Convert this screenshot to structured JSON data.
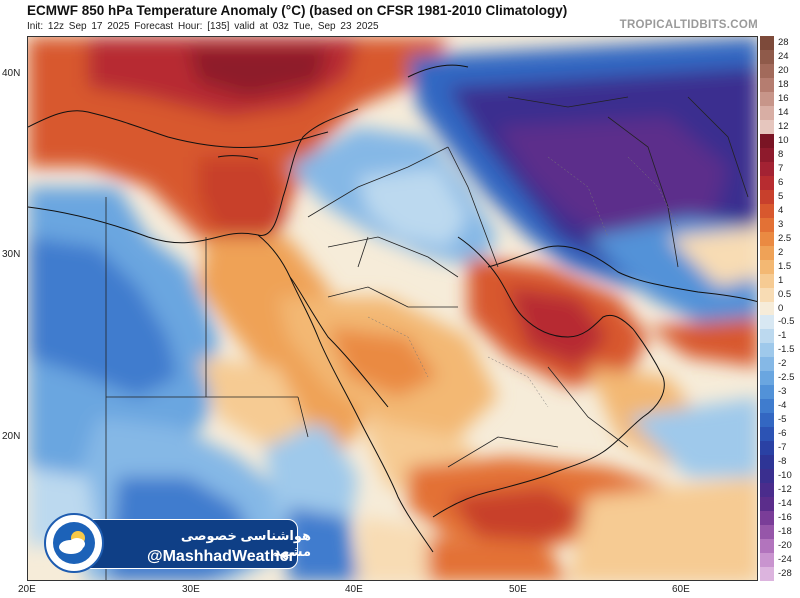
{
  "header": {
    "title": "ECMWF 850 hPa Temperature Anomaly (°C) (based on CFSR 1981-2010 Climatology)",
    "subtitle": "Init: 12z Sep 17 2025   Forecast Hour: [135]   valid at 03z Tue, Sep 23 2025",
    "site": "TROPICALTIDBITS.COM"
  },
  "axes": {
    "lat_labels": [
      "40N",
      "30N",
      "20N"
    ],
    "lon_labels": [
      "20E",
      "30E",
      "40E",
      "50E",
      "60E"
    ]
  },
  "colorbar": {
    "labels": [
      "28",
      "24",
      "20",
      "18",
      "16",
      "14",
      "12",
      "10",
      "8",
      "7",
      "6",
      "5",
      "4",
      "3",
      "2.5",
      "2",
      "1.5",
      "1",
      "0.5",
      "0",
      "-0.5",
      "-1",
      "-1.5",
      "-2",
      "-2.5",
      "-3",
      "-4",
      "-5",
      "-6",
      "-7",
      "-8",
      "-10",
      "-12",
      "-14",
      "-16",
      "-18",
      "-20",
      "-24",
      "-28"
    ],
    "colors": [
      "#7d4a3a",
      "#8f5a4a",
      "#a26a5b",
      "#b57d70",
      "#c79589",
      "#d8aea4",
      "#e6c6be",
      "#7a1424",
      "#8e1a2c",
      "#a32233",
      "#b72c30",
      "#c8402c",
      "#d8582e",
      "#e37135",
      "#ea8a42",
      "#efa257",
      "#f3b873",
      "#f6cb93",
      "#f8dcb4",
      "#f6ecd9",
      "#d8e8f3",
      "#bcd9ef",
      "#9fc9eb",
      "#85b8e6",
      "#6aa6e0",
      "#5292d8",
      "#3f7cce",
      "#3367c2",
      "#2c53b4",
      "#2a41a4",
      "#2e3596",
      "#3a2f8f",
      "#4a2c8c",
      "#5b2d8b",
      "#7a3d98",
      "#9656a9",
      "#b274bd",
      "#c994cf",
      "#dcb4de"
    ]
  },
  "watermark": {
    "line1": "هواشناسی خصوصی مشهد",
    "line2": "@MashhadWeather"
  }
}
